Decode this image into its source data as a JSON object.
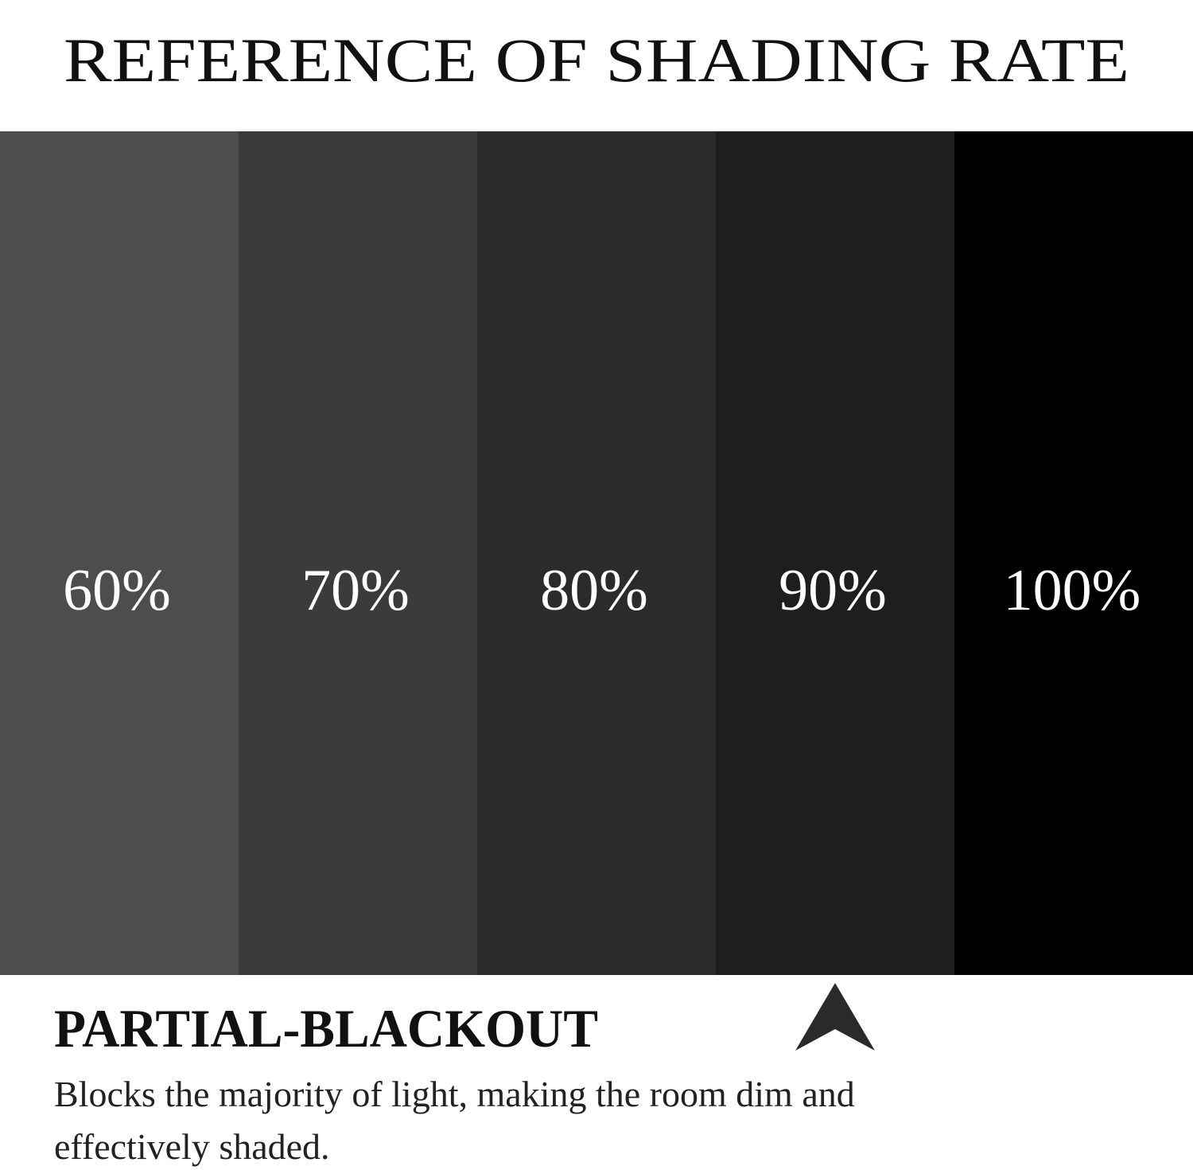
{
  "header": {
    "title": "REFERENCE OF SHADING RATE"
  },
  "panels": [
    {
      "label": "60%"
    },
    {
      "label": "70%"
    },
    {
      "label": "80%"
    },
    {
      "label": "90%"
    },
    {
      "label": "100%"
    }
  ],
  "info": {
    "heading": "PARTIAL-BLACKOUT",
    "description": [
      "Blocks the majority of light, making the room dim and",
      "effectively shaded."
    ]
  }
}
